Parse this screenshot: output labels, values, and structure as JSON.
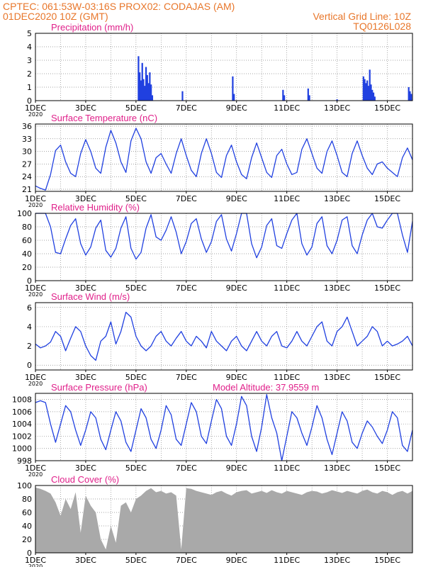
{
  "header": {
    "line1": "CPTEC:   061:53W-03:16S   PROX02: CODAJAS (AM)",
    "line2_left": "01DEC2020 10Z (GMT)",
    "line2_right": "Vertical Grid Line: 10Z",
    "line3_right": "TQ0126L028"
  },
  "colors": {
    "header": "#e8762a",
    "title": "#e0208a",
    "series": "#2040e0",
    "cloud": "#a9a9a9",
    "grid": "#888888"
  },
  "x_axis": {
    "tick_labels": [
      "1DEC",
      "3DEC",
      "5DEC",
      "7DEC",
      "9DEC",
      "11DEC",
      "13DEC",
      "15DEC"
    ],
    "tick_days": [
      1,
      3,
      5,
      7,
      9,
      11,
      13,
      15
    ],
    "xlim": [
      1,
      16
    ],
    "year_label": "2020"
  },
  "chart_data": [
    {
      "type": "bar",
      "title": "Precipitation (mm/h)",
      "ylim": [
        0,
        5
      ],
      "yticks": [
        0,
        1,
        2,
        3,
        4,
        5
      ],
      "x": [
        5.1,
        5.15,
        5.2,
        5.25,
        5.3,
        5.35,
        5.4,
        5.45,
        5.5,
        5.55,
        5.6,
        5.65,
        6.85,
        8.85,
        8.9,
        10.85,
        10.9,
        11.85,
        11.9,
        13.0,
        14.05,
        14.1,
        14.15,
        14.2,
        14.25,
        14.3,
        14.35,
        14.4,
        14.45,
        14.5,
        15.85,
        15.9,
        15.95
      ],
      "values": [
        3.3,
        2.1,
        1.5,
        2.8,
        1.6,
        1.1,
        2.5,
        1.9,
        1.3,
        2.1,
        1.2,
        0.4,
        0.7,
        1.8,
        0.5,
        0.8,
        0.4,
        0.9,
        0.4,
        0.1,
        1.8,
        1.6,
        1.3,
        1.5,
        1.1,
        2.3,
        1.2,
        0.8,
        0.6,
        0.3,
        1.0,
        0.7,
        0.5
      ]
    },
    {
      "type": "line",
      "title": "Surface Temperature (nC)",
      "ylim": [
        20.5,
        36.5
      ],
      "yticks": [
        21,
        24,
        27,
        30,
        33,
        36
      ],
      "x": [
        1.0,
        1.2,
        1.4,
        1.6,
        1.8,
        2.0,
        2.2,
        2.4,
        2.6,
        2.8,
        3.0,
        3.2,
        3.4,
        3.6,
        3.8,
        4.0,
        4.2,
        4.4,
        4.6,
        4.8,
        5.0,
        5.2,
        5.4,
        5.6,
        5.8,
        6.0,
        6.2,
        6.4,
        6.6,
        6.8,
        7.0,
        7.2,
        7.4,
        7.6,
        7.8,
        8.0,
        8.2,
        8.4,
        8.6,
        8.8,
        9.0,
        9.2,
        9.4,
        9.6,
        9.8,
        10.0,
        10.2,
        10.4,
        10.6,
        10.8,
        11.0,
        11.2,
        11.4,
        11.6,
        11.8,
        12.0,
        12.2,
        12.4,
        12.6,
        12.8,
        13.0,
        13.2,
        13.4,
        13.6,
        13.8,
        14.0,
        14.2,
        14.4,
        14.6,
        14.8,
        15.0,
        15.2,
        15.4,
        15.6,
        15.8,
        16.0
      ],
      "values": [
        21.8,
        21.2,
        20.8,
        24.5,
        30.2,
        31.5,
        27.5,
        24.8,
        24.0,
        29.5,
        32.8,
        30.0,
        26.0,
        24.8,
        31.0,
        35.0,
        32.0,
        27.5,
        25.0,
        32.5,
        35.5,
        33.0,
        27.5,
        24.8,
        28.5,
        29.5,
        27.0,
        24.8,
        29.5,
        33.0,
        29.0,
        25.5,
        24.0,
        29.5,
        33.0,
        29.5,
        25.0,
        23.8,
        29.0,
        31.5,
        27.5,
        24.5,
        23.5,
        28.5,
        32.0,
        28.5,
        25.0,
        23.8,
        29.0,
        30.5,
        27.0,
        24.5,
        25.0,
        30.5,
        33.0,
        29.5,
        26.0,
        24.8,
        30.0,
        32.5,
        29.0,
        25.0,
        24.0,
        29.5,
        32.5,
        29.0,
        26.0,
        24.5,
        27.0,
        27.5,
        26.0,
        25.0,
        24.0,
        28.5,
        30.8,
        28.0
      ]
    },
    {
      "type": "line",
      "title": "Relative Humidity (%)",
      "ylim": [
        0,
        100
      ],
      "yticks": [
        0,
        20,
        40,
        60,
        80,
        100
      ],
      "x": [
        1.0,
        1.2,
        1.4,
        1.6,
        1.8,
        2.0,
        2.2,
        2.4,
        2.6,
        2.8,
        3.0,
        3.2,
        3.4,
        3.6,
        3.8,
        4.0,
        4.2,
        4.4,
        4.6,
        4.8,
        5.0,
        5.2,
        5.4,
        5.6,
        5.8,
        6.0,
        6.2,
        6.4,
        6.6,
        6.8,
        7.0,
        7.2,
        7.4,
        7.6,
        7.8,
        8.0,
        8.2,
        8.4,
        8.6,
        8.8,
        9.0,
        9.2,
        9.4,
        9.6,
        9.8,
        10.0,
        10.2,
        10.4,
        10.6,
        10.8,
        11.0,
        11.2,
        11.4,
        11.6,
        11.8,
        12.0,
        12.2,
        12.4,
        12.6,
        12.8,
        13.0,
        13.2,
        13.4,
        13.6,
        13.8,
        14.0,
        14.2,
        14.4,
        14.6,
        14.8,
        15.0,
        15.2,
        15.4,
        15.6,
        15.8,
        16.0
      ],
      "values": [
        100,
        100,
        100,
        80,
        42,
        40,
        62,
        82,
        92,
        55,
        38,
        50,
        78,
        90,
        45,
        35,
        48,
        78,
        95,
        48,
        32,
        42,
        78,
        98,
        65,
        60,
        75,
        95,
        72,
        40,
        58,
        85,
        92,
        62,
        42,
        58,
        88,
        98,
        62,
        44,
        70,
        100,
        100,
        55,
        34,
        50,
        82,
        92,
        52,
        48,
        70,
        90,
        100,
        55,
        38,
        50,
        85,
        95,
        52,
        40,
        60,
        90,
        95,
        52,
        40,
        68,
        90,
        100,
        80,
        78,
        90,
        100,
        100,
        68,
        42,
        88
      ]
    },
    {
      "type": "line",
      "title": "Surface Wind (m/s)",
      "ylim": [
        -0.5,
        6.5
      ],
      "yticks": [
        0,
        2,
        4,
        6
      ],
      "x": [
        1.0,
        1.2,
        1.4,
        1.6,
        1.8,
        2.0,
        2.2,
        2.4,
        2.6,
        2.8,
        3.0,
        3.2,
        3.4,
        3.6,
        3.8,
        4.0,
        4.2,
        4.4,
        4.6,
        4.8,
        5.0,
        5.2,
        5.4,
        5.6,
        5.8,
        6.0,
        6.2,
        6.4,
        6.6,
        6.8,
        7.0,
        7.2,
        7.4,
        7.6,
        7.8,
        8.0,
        8.2,
        8.4,
        8.6,
        8.8,
        9.0,
        9.2,
        9.4,
        9.6,
        9.8,
        10.0,
        10.2,
        10.4,
        10.6,
        10.8,
        11.0,
        11.2,
        11.4,
        11.6,
        11.8,
        12.0,
        12.2,
        12.4,
        12.6,
        12.8,
        13.0,
        13.2,
        13.4,
        13.6,
        13.8,
        14.0,
        14.2,
        14.4,
        14.6,
        14.8,
        15.0,
        15.2,
        15.4,
        15.6,
        15.8,
        16.0
      ],
      "values": [
        2.2,
        1.8,
        2.0,
        2.4,
        3.5,
        3.0,
        1.5,
        2.8,
        4.0,
        3.5,
        2.0,
        1.0,
        0.5,
        2.5,
        3.0,
        4.5,
        2.2,
        3.5,
        5.5,
        5.0,
        3.0,
        2.0,
        1.5,
        2.0,
        3.0,
        3.5,
        2.5,
        2.0,
        2.8,
        3.5,
        2.5,
        2.0,
        3.0,
        2.5,
        1.8,
        3.5,
        2.5,
        2.0,
        1.5,
        2.5,
        3.0,
        2.0,
        1.5,
        2.5,
        3.5,
        2.5,
        2.0,
        3.0,
        3.5,
        2.0,
        1.8,
        2.5,
        3.5,
        2.5,
        2.0,
        3.0,
        4.0,
        4.5,
        2.5,
        2.0,
        3.5,
        4.0,
        5.0,
        3.5,
        2.0,
        2.5,
        3.0,
        4.0,
        3.5,
        2.0,
        2.5,
        2.0,
        2.2,
        2.5,
        3.0,
        2.0
      ]
    },
    {
      "type": "line",
      "title": "Surface Pressure (hPa)",
      "annotation": "Model Altitude: 37.9559 m",
      "ylim": [
        998,
        1009
      ],
      "yticks": [
        998,
        1000,
        1002,
        1004,
        1006,
        1008
      ],
      "x": [
        1.0,
        1.2,
        1.4,
        1.6,
        1.8,
        2.0,
        2.2,
        2.4,
        2.6,
        2.8,
        3.0,
        3.2,
        3.4,
        3.6,
        3.8,
        4.0,
        4.2,
        4.4,
        4.6,
        4.8,
        5.0,
        5.2,
        5.4,
        5.6,
        5.8,
        6.0,
        6.2,
        6.4,
        6.6,
        6.8,
        7.0,
        7.2,
        7.4,
        7.6,
        7.8,
        8.0,
        8.2,
        8.4,
        8.6,
        8.8,
        9.0,
        9.2,
        9.4,
        9.6,
        9.8,
        10.0,
        10.2,
        10.4,
        10.6,
        10.8,
        11.0,
        11.2,
        11.4,
        11.6,
        11.8,
        12.0,
        12.2,
        12.4,
        12.6,
        12.8,
        13.0,
        13.2,
        13.4,
        13.6,
        13.8,
        14.0,
        14.2,
        14.4,
        14.6,
        14.8,
        15.0,
        15.2,
        15.4,
        15.6,
        15.8,
        16.0
      ],
      "values": [
        1007.5,
        1007.8,
        1007.5,
        1004.0,
        1001.0,
        1004.0,
        1007.0,
        1006.0,
        1003.0,
        1000.5,
        1003.0,
        1006.0,
        1005.0,
        1001.5,
        999.8,
        1003.0,
        1006.0,
        1004.5,
        1001.0,
        999.5,
        1003.0,
        1006.5,
        1005.0,
        1001.5,
        1000.0,
        1003.0,
        1007.0,
        1005.5,
        1001.5,
        1000.5,
        1004.0,
        1007.5,
        1006.0,
        1002.0,
        1000.8,
        1004.5,
        1008.0,
        1006.5,
        1002.0,
        1000.5,
        1004.0,
        1008.5,
        1007.0,
        1002.0,
        999.5,
        1003.5,
        1008.8,
        1005.0,
        1002.5,
        998.0,
        1002.0,
        1006.0,
        1005.0,
        1002.5,
        1000.5,
        1003.5,
        1007.0,
        1005.0,
        1001.5,
        999.0,
        1002.5,
        1006.0,
        1004.5,
        1001.0,
        1000.0,
        1002.5,
        1004.5,
        1003.5,
        1002.0,
        1000.8,
        1003.0,
        1006.0,
        1005.0,
        1000.5,
        999.5,
        1003.0
      ]
    },
    {
      "type": "area",
      "title": "Cloud Cover (%)",
      "ylim": [
        0,
        100
      ],
      "yticks": [
        0,
        20,
        40,
        60,
        80,
        100
      ],
      "x": [
        1.0,
        1.2,
        1.4,
        1.6,
        1.8,
        2.0,
        2.2,
        2.4,
        2.6,
        2.8,
        3.0,
        3.2,
        3.4,
        3.6,
        3.8,
        4.0,
        4.2,
        4.4,
        4.6,
        4.8,
        5.0,
        5.2,
        5.4,
        5.6,
        5.8,
        6.0,
        6.2,
        6.4,
        6.6,
        6.8,
        7.0,
        7.2,
        7.4,
        7.6,
        7.8,
        8.0,
        8.2,
        8.4,
        8.6,
        8.8,
        9.0,
        9.2,
        9.4,
        9.6,
        9.8,
        10.0,
        10.2,
        10.4,
        10.6,
        10.8,
        11.0,
        11.2,
        11.4,
        11.6,
        11.8,
        12.0,
        12.2,
        12.4,
        12.6,
        12.8,
        13.0,
        13.2,
        13.4,
        13.6,
        13.8,
        14.0,
        14.2,
        14.4,
        14.6,
        14.8,
        15.0,
        15.2,
        15.4,
        15.6,
        15.8,
        16.0
      ],
      "values": [
        97,
        95,
        92,
        88,
        75,
        55,
        80,
        65,
        90,
        30,
        85,
        70,
        60,
        20,
        5,
        40,
        15,
        70,
        75,
        60,
        80,
        85,
        92,
        96,
        90,
        92,
        88,
        90,
        85,
        5,
        96,
        95,
        92,
        90,
        88,
        86,
        90,
        92,
        88,
        85,
        90,
        92,
        93,
        88,
        90,
        92,
        89,
        93,
        90,
        88,
        92,
        90,
        88,
        86,
        90,
        92,
        91,
        88,
        90,
        93,
        91,
        89,
        92,
        90,
        88,
        92,
        94,
        90,
        88,
        92,
        90,
        86,
        90,
        92,
        88,
        92
      ]
    }
  ]
}
